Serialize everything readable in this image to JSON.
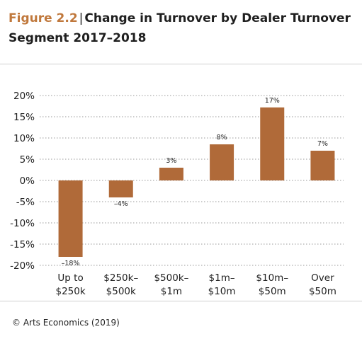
{
  "figure": {
    "number": "Figure 2.2",
    "title": "Change in Turnover by Dealer Turnover Segment 2017–2018"
  },
  "source": "© Arts Economics (2019)",
  "colors": {
    "bar": "#b06a39",
    "figure_number": "#c0783c",
    "grid": "#9a9a9a"
  },
  "chart_data": {
    "type": "bar",
    "categories": [
      [
        "Up to",
        "$250k"
      ],
      [
        "$250k–",
        "$500k"
      ],
      [
        "$500k–",
        "$1m"
      ],
      [
        "$1m–",
        "$10m"
      ],
      [
        "$10m–",
        "$50m"
      ],
      [
        "Over",
        "$50m"
      ]
    ],
    "values": [
      -18,
      -4,
      3,
      8.5,
      17.2,
      7
    ],
    "data_labels": [
      "–18%",
      "–4%",
      "3%",
      "8%",
      "17%",
      "7%"
    ],
    "ylim": [
      -20,
      20
    ],
    "yticks": [
      20,
      15,
      10,
      5,
      0,
      -5,
      -10,
      -15,
      -20
    ],
    "ytick_labels": [
      "20%",
      "15%",
      "10%",
      "5%",
      "0%",
      "-5%",
      "-10%",
      "-15%",
      "-20%"
    ],
    "grid": "dotted horizontal",
    "xlabel": "",
    "ylabel": ""
  }
}
